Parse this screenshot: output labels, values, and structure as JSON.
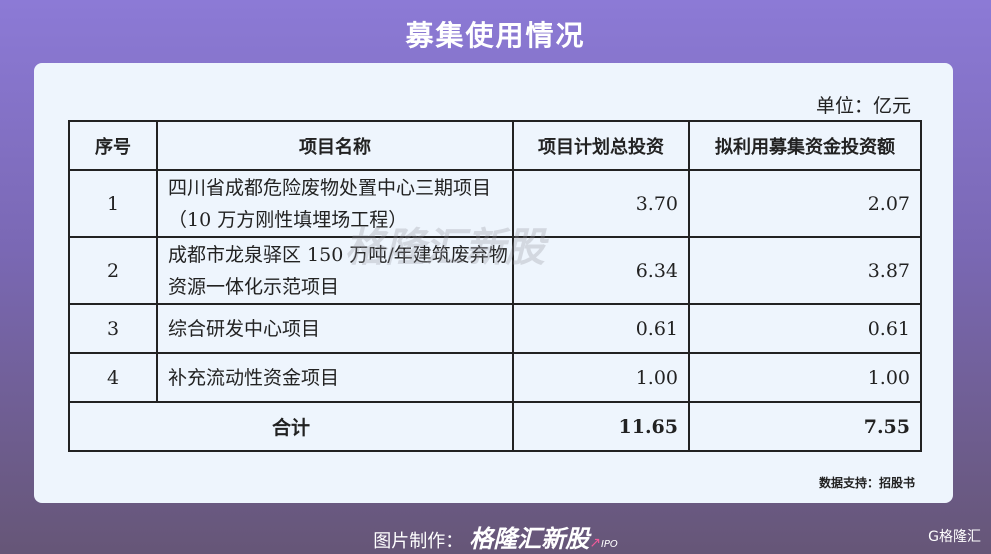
{
  "title": "募集使用情况",
  "unit": "单位：亿元",
  "headers": [
    "序号",
    "项目名称",
    "项目计划总投资",
    "拟利用募集资金投资额"
  ],
  "rows": [
    {
      "no": "1",
      "name": "四川省成都危险废物处置中心三期项目（10 万方刚性填埋场工程）",
      "total": "3.70",
      "raised": "2.07"
    },
    {
      "no": "2",
      "name": "成都市龙泉驿区 150 万吨/年建筑废弃物资源一体化示范项目",
      "total": "6.34",
      "raised": "3.87"
    },
    {
      "no": "3",
      "name": "综合研发中心项目",
      "total": "0.61",
      "raised": "0.61"
    },
    {
      "no": "4",
      "name": "补充流动性资金项目",
      "total": "1.00",
      "raised": "1.00"
    }
  ],
  "total": {
    "label": "合计",
    "total": "11.65",
    "raised": "7.55"
  },
  "source": "数据支持：招股书",
  "watermark": "格隆汇新股",
  "footer": {
    "prefix": "图片制作：",
    "brand": "格隆汇新股",
    "ipo": "IPO"
  },
  "logo": "G格隆汇"
}
